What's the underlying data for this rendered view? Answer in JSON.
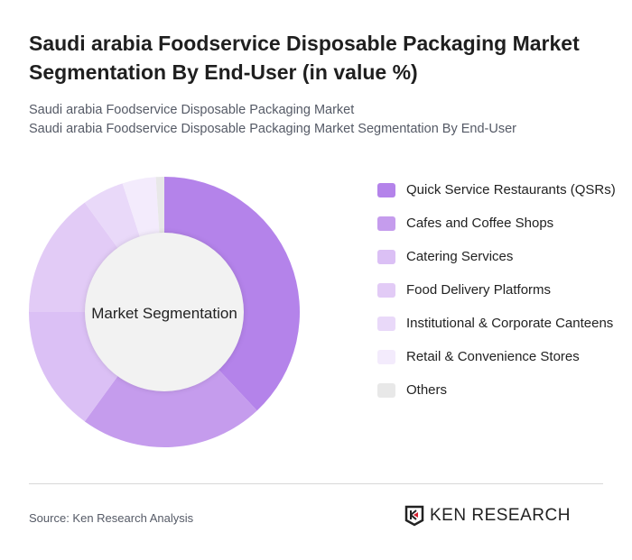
{
  "title": "Saudi arabia Foodservice Disposable Packaging Market Segmentation By End-User (in value %)",
  "subtitle1": "Saudi arabia Foodservice Disposable Packaging Market",
  "subtitle2": "Saudi arabia Foodservice Disposable Packaging Market Segmentation By End-User",
  "source": "Source: Ken Research Analysis",
  "logo_text": "KEN RESEARCH",
  "chart_data": {
    "type": "pie",
    "variant": "donut",
    "center_label": "Market Segmentation",
    "legend_position": "right",
    "categories": [
      "Quick Service Restaurants (QSRs)",
      "Cafes and Coffee Shops",
      "Catering Services",
      "Food Delivery Platforms",
      "Institutional & Corporate Canteens",
      "Retail & Convenience Stores",
      "Others"
    ],
    "values": [
      38,
      22,
      15,
      15,
      5,
      4,
      1
    ],
    "colors": [
      "#b483ea",
      "#c59ced",
      "#dbc0f5",
      "#e2cbf6",
      "#e9d9f9",
      "#f3ebfc",
      "#e8e8e8"
    ]
  }
}
